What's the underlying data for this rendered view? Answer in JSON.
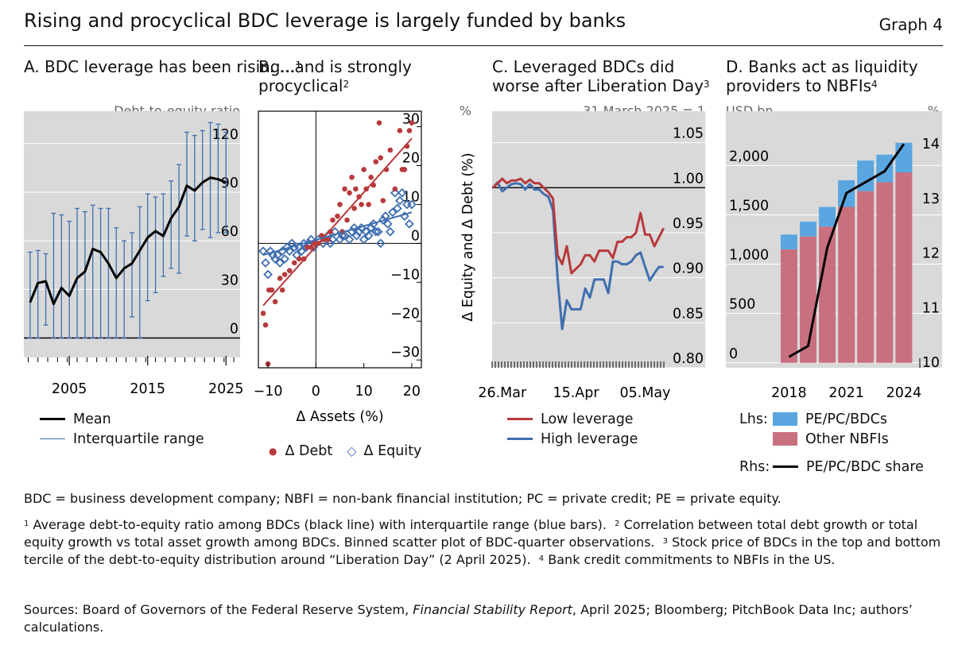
{
  "header": {
    "title": "Rising and procyclical BDC leverage is largely funded by banks",
    "graph_number": "Graph 4"
  },
  "panels": {
    "a": {
      "title": "A. BDC leverage has been rising...",
      "note_ref": "1",
      "unit": "Debt-to-equity ratio"
    },
    "b": {
      "title_line1": "B. ...and is strongly",
      "title_line2": "procyclical",
      "note_ref": "2",
      "unit": "%",
      "ylabel": "Δ Equity and Δ Debt (%)",
      "xlabel": "Δ Assets (%)"
    },
    "c": {
      "title_line1": "C. Leveraged BDCs did",
      "title_line2": "worse after Liberation Day",
      "note_ref": "3",
      "unit": "31 March 2025 = 1"
    },
    "d": {
      "title_line1": "D. Banks act as liquidity",
      "title_line2": "providers to NBFIs",
      "note_ref": "4",
      "unit_left": "USD bn",
      "unit_right": "%"
    }
  },
  "legends": {
    "a": {
      "mean": "Mean",
      "iqr": "Interquartile range"
    },
    "b": {
      "debt": "Δ Debt",
      "equity": "Δ Equity"
    },
    "c": {
      "low": "Low leverage",
      "high": "High leverage"
    },
    "d": {
      "lhs": "Lhs:",
      "pe": "PE/PC/BDCs",
      "other": "Other NBFIs",
      "rhs": "Rhs:",
      "share": "PE/PC/BDC share"
    }
  },
  "colors": {
    "red": "#b83a3c",
    "blue": "#3f6fb0",
    "light_blue": "#5aa6e0",
    "pink": "#c9707f",
    "grid_bg": "#d9d9d9",
    "black": "#000000"
  },
  "notes": {
    "abbrev": "BDC = business development company; NBFI = non-bank financial institution; PC = private credit; PE = private equity.",
    "n1": "Average debt-to-equity ratio among BDCs (black line) with interquartile range (blue bars).",
    "n2": "Correlation between total debt growth or total equity growth vs total asset growth among BDCs. Binned scatter plot of BDC-quarter observations.",
    "n3": "Stock price of BDCs in the top and bottom tercile of the debt-to-equity distribution around “Liberation Day” (2 April 2025).",
    "n4": "Bank credit commitments to NBFIs in the US.",
    "sources_pre": "Sources: Board of Governors of the Federal Reserve System,",
    "sources_italic": "Financial Stability Report",
    "sources_post": ", April 2025; Bloomberg; PitchBook Data Inc; authors’ calculations."
  },
  "chart_data": [
    {
      "type": "line",
      "panel": "A",
      "title": "A. BDC leverage has been rising...",
      "ylabel": "Debt-to-equity ratio",
      "ylim": [
        -12,
        140
      ],
      "yticks": [
        0,
        30,
        60,
        90,
        120
      ],
      "xticks": [
        2005,
        2015,
        2025
      ],
      "x": [
        2000,
        2001,
        2002,
        2003,
        2004,
        2005,
        2006,
        2007,
        2008,
        2009,
        2010,
        2011,
        2012,
        2013,
        2014,
        2015,
        2016,
        2017,
        2018,
        2019,
        2020,
        2021,
        2022,
        2023,
        2024,
        2025
      ],
      "series": [
        {
          "name": "Mean",
          "values": [
            22,
            34,
            35,
            21,
            31,
            26,
            37,
            41,
            55,
            53,
            46,
            37,
            43,
            46,
            54,
            62,
            66,
            63,
            74,
            81,
            94,
            91,
            96,
            99,
            98,
            96
          ]
        },
        {
          "name": "Interquartile range",
          "low": [
            0,
            0,
            8,
            0,
            0,
            0,
            0,
            0,
            0,
            0,
            0,
            0,
            0,
            13,
            0,
            23,
            28,
            38,
            43,
            40,
            63,
            60,
            67,
            62,
            65,
            65
          ],
          "high": [
            53,
            54,
            52,
            77,
            76,
            72,
            80,
            78,
            82,
            80,
            80,
            68,
            60,
            65,
            81,
            89,
            87,
            89,
            97,
            107,
            127,
            125,
            128,
            133,
            132,
            127
          ]
        }
      ]
    },
    {
      "type": "scatter",
      "panel": "B",
      "title": "B. ...and is strongly procyclical",
      "xlabel": "Δ Assets (%)",
      "ylabel": "Δ Equity and Δ Debt (%)",
      "xlim": [
        -12,
        22
      ],
      "ylim": [
        -32,
        34
      ],
      "xticks": [
        -10,
        0,
        10,
        20
      ],
      "yticks": [
        -30,
        -20,
        -10,
        0,
        10,
        20,
        30
      ],
      "series": [
        {
          "name": "Δ Debt",
          "points": [
            [
              -11,
              -18
            ],
            [
              -10.5,
              -21
            ],
            [
              -10,
              -31
            ],
            [
              -9.8,
              -12
            ],
            [
              -9.2,
              -12
            ],
            [
              -8.5,
              -15
            ],
            [
              -7.5,
              -9
            ],
            [
              -7,
              -12
            ],
            [
              -6.5,
              -8
            ],
            [
              -5.5,
              -7
            ],
            [
              -4.5,
              -5
            ],
            [
              -3.5,
              -4
            ],
            [
              -2.5,
              -4
            ],
            [
              -1.8,
              -1
            ],
            [
              -1,
              -1
            ],
            [
              -0.3,
              0
            ],
            [
              0.5,
              0
            ],
            [
              1.2,
              2
            ],
            [
              1.5,
              1
            ],
            [
              2.5,
              1
            ],
            [
              3,
              3
            ],
            [
              3.5,
              6
            ],
            [
              4.5,
              7
            ],
            [
              5,
              10
            ],
            [
              5.5,
              3
            ],
            [
              6,
              14
            ],
            [
              6.5,
              6
            ],
            [
              7,
              13
            ],
            [
              7.5,
              17
            ],
            [
              8,
              9
            ],
            [
              8.3,
              14
            ],
            [
              9,
              12
            ],
            [
              9.5,
              10
            ],
            [
              10,
              19
            ],
            [
              10.5,
              14
            ],
            [
              11,
              10
            ],
            [
              11.5,
              17
            ],
            [
              12,
              15
            ],
            [
              12.5,
              21
            ],
            [
              13.2,
              31
            ],
            [
              13.5,
              22
            ],
            [
              14,
              11
            ],
            [
              14.7,
              19
            ],
            [
              15.5,
              24
            ],
            [
              16.5,
              14
            ],
            [
              17.5,
              29
            ],
            [
              18,
              19
            ],
            [
              18.5,
              19
            ],
            [
              19,
              25
            ],
            [
              19.5,
              29
            ],
            [
              20,
              31
            ]
          ]
        },
        {
          "name": "Δ Equity",
          "points": [
            [
              -11,
              -2
            ],
            [
              -10.5,
              -5
            ],
            [
              -10,
              -8
            ],
            [
              -9.5,
              -2
            ],
            [
              -9,
              -3
            ],
            [
              -8.5,
              -4
            ],
            [
              -8,
              -3
            ],
            [
              -7.5,
              -5
            ],
            [
              -7,
              -2
            ],
            [
              -6.5,
              -4
            ],
            [
              -6,
              -1
            ],
            [
              -5.5,
              -2
            ],
            [
              -5,
              0
            ],
            [
              -4.5,
              -1
            ],
            [
              -4,
              -3
            ],
            [
              -3.5,
              -1
            ],
            [
              -3,
              -2
            ],
            [
              -2.5,
              0
            ],
            [
              -2,
              -1
            ],
            [
              -1.5,
              0
            ],
            [
              -1,
              1
            ],
            [
              -0.5,
              -1
            ],
            [
              0,
              0
            ],
            [
              0.5,
              1
            ],
            [
              1.5,
              0
            ],
            [
              2.5,
              2
            ],
            [
              3,
              0
            ],
            [
              3.5,
              1
            ],
            [
              4,
              3
            ],
            [
              5,
              1
            ],
            [
              5.5,
              2
            ],
            [
              6,
              2
            ],
            [
              7,
              1
            ],
            [
              7.5,
              3
            ],
            [
              8,
              4
            ],
            [
              8.5,
              2
            ],
            [
              9,
              3
            ],
            [
              9.5,
              4
            ],
            [
              10,
              1
            ],
            [
              10.5,
              3
            ],
            [
              11,
              2
            ],
            [
              11.5,
              4
            ],
            [
              12,
              5
            ],
            [
              12.5,
              3
            ],
            [
              13,
              3
            ],
            [
              13.5,
              0
            ],
            [
              14,
              6
            ],
            [
              14.5,
              7
            ],
            [
              15,
              5
            ],
            [
              15.5,
              3
            ],
            [
              16,
              8
            ],
            [
              16.5,
              13
            ],
            [
              17,
              9
            ],
            [
              17.5,
              11
            ],
            [
              18,
              13
            ],
            [
              18.5,
              7
            ],
            [
              19,
              10
            ],
            [
              19.5,
              5
            ],
            [
              20,
              10
            ]
          ]
        }
      ],
      "fit_lines": [
        {
          "name": "Δ Debt",
          "from": [
            -11,
            -16
          ],
          "to": [
            20,
            27
          ]
        },
        {
          "name": "Δ Equity",
          "from": [
            -11,
            -3
          ],
          "to": [
            20,
            8
          ]
        }
      ]
    },
    {
      "type": "line",
      "panel": "C",
      "title": "C. Leveraged BDCs did worse after Liberation Day",
      "ylabel": "31 March 2025 = 1",
      "ylim": [
        0.8,
        1.085
      ],
      "yticks": [
        0.8,
        0.85,
        0.9,
        0.95,
        1.0,
        1.05
      ],
      "xticks": [
        "26.Mar",
        "15.Apr",
        "05.May"
      ],
      "series": [
        {
          "name": "Low leverage",
          "values": [
            1.0,
            1.005,
            1.01,
            1.005,
            1.008,
            1.008,
            1.01,
            1.005,
            1.009,
            1.005,
            1.005,
            1.0,
            0.995,
            0.988,
            0.925,
            0.915,
            0.935,
            0.905,
            0.91,
            0.915,
            0.925,
            0.925,
            0.918,
            0.93,
            0.93,
            0.93,
            0.922,
            0.94,
            0.94,
            0.945,
            0.945,
            0.95,
            0.972,
            0.948,
            0.948,
            0.935,
            0.945,
            0.955
          ]
        },
        {
          "name": "High leverage",
          "values": [
            1.0,
            1.006,
            0.996,
            1.0,
            1.004,
            1.005,
            1.004,
            0.998,
            1.004,
            0.998,
            0.998,
            0.993,
            0.99,
            0.975,
            0.9,
            0.843,
            0.875,
            0.865,
            0.865,
            0.865,
            0.888,
            0.878,
            0.898,
            0.898,
            0.898,
            0.883,
            0.918,
            0.918,
            0.915,
            0.915,
            0.918,
            0.925,
            0.928,
            0.912,
            0.897,
            0.905,
            0.912,
            0.912
          ]
        }
      ]
    },
    {
      "type": "bar",
      "panel": "D",
      "title": "D. Banks act as liquidity providers to NBFIs",
      "ylabel_left": "USD bn",
      "ylabel_right": "%",
      "ylim_left": [
        -50,
        2550
      ],
      "yticks_left": [
        0,
        500,
        1000,
        1500,
        2000
      ],
      "ylim_right": [
        9.9,
        14.6
      ],
      "yticks_right": [
        10,
        11,
        12,
        13,
        14
      ],
      "categories": [
        2018,
        2019,
        2020,
        2021,
        2022,
        2023,
        2024
      ],
      "xticks": [
        2018,
        2021,
        2024
      ],
      "series": [
        {
          "name": "Other NBFIs",
          "values": [
            1150,
            1280,
            1380,
            1580,
            1740,
            1830,
            1930
          ]
        },
        {
          "name": "PE/PC/BDCs",
          "values": [
            150,
            150,
            200,
            270,
            310,
            280,
            300
          ]
        },
        {
          "name": "PE/PC/BDC share",
          "axis": "right",
          "x": [
            2018,
            2019,
            2020,
            2021,
            2022,
            2023,
            2024
          ],
          "values": [
            10.1,
            10.3,
            12.1,
            13.1,
            13.3,
            13.5,
            14.0
          ]
        }
      ]
    }
  ]
}
